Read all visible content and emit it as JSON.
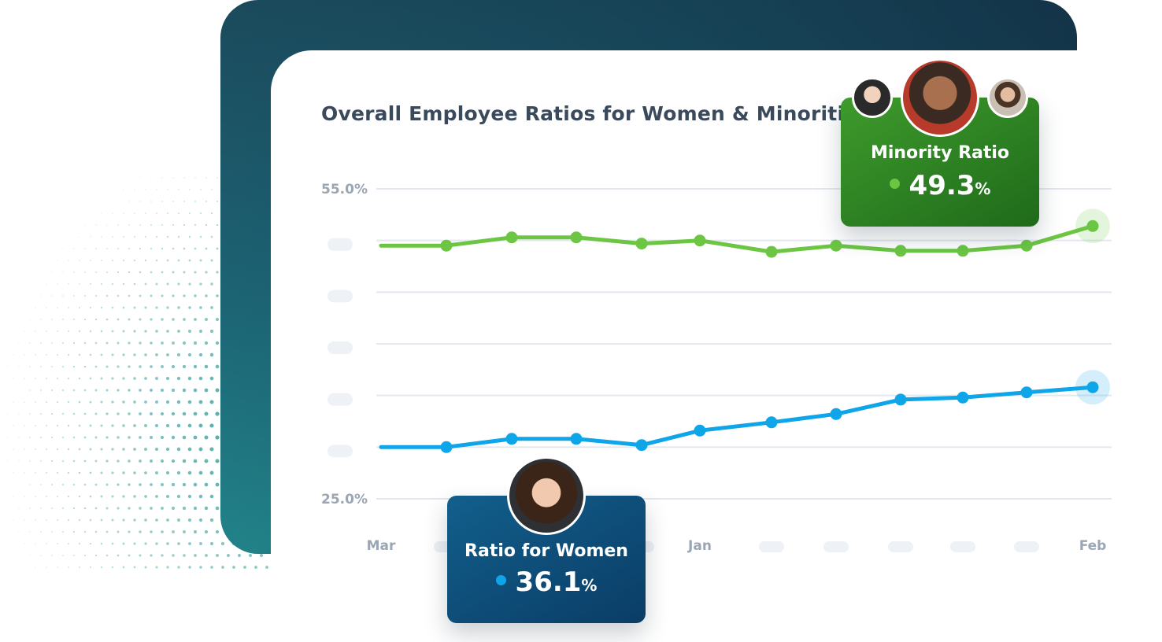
{
  "chart_data": {
    "type": "line",
    "title": "Overall Employee Ratios for Women & Minorities",
    "categories": [
      "Mar",
      "",
      "",
      "",
      "",
      "Jan",
      "",
      "",
      "",
      "",
      "",
      "Feb"
    ],
    "ytick_labels": [
      "55.0%",
      "25.0%"
    ],
    "ylim": [
      25.0,
      55.0
    ],
    "grid": true,
    "series": [
      {
        "name": "Minority Ratio",
        "color": "#6cc644",
        "values": [
          49.5,
          49.5,
          50.3,
          50.3,
          49.7,
          50.0,
          48.9,
          49.5,
          49.0,
          49.0,
          49.5,
          51.4
        ]
      },
      {
        "name": "Ratio for Women",
        "color": "#0ea5e9",
        "values": [
          30.0,
          30.0,
          30.8,
          30.8,
          30.2,
          31.6,
          32.4,
          33.2,
          34.6,
          34.8,
          35.3,
          35.8
        ]
      }
    ]
  },
  "callouts": {
    "minority": {
      "label": "Minority Ratio",
      "value": "49.3",
      "unit": "%",
      "color": "#6cc644"
    },
    "women": {
      "label": "Ratio for Women",
      "value": "36.1",
      "unit": "%",
      "color": "#0ea5e9"
    }
  }
}
